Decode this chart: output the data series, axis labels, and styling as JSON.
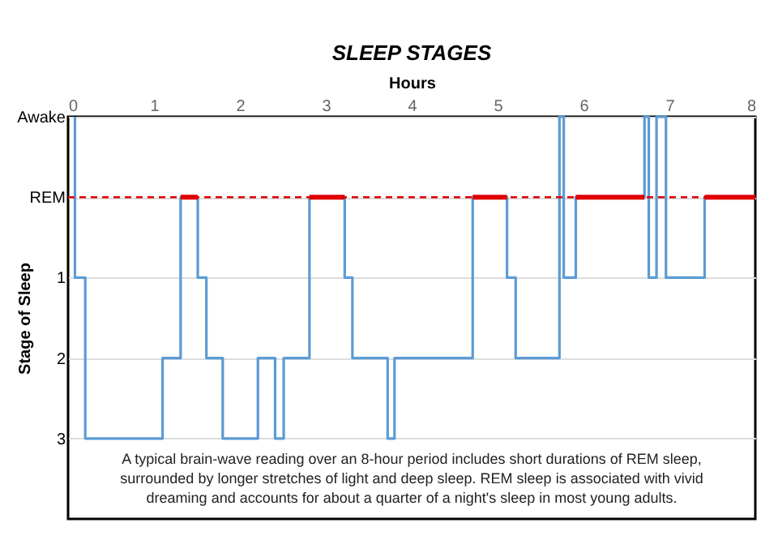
{
  "chart_data": {
    "type": "step",
    "title": "SLEEP STAGES",
    "xlabel": "Hours",
    "ylabel": "Stage of Sleep",
    "xlim": [
      0,
      8
    ],
    "xticks": [
      0,
      1,
      2,
      3,
      4,
      5,
      6,
      7,
      8
    ],
    "ylim": [
      4,
      -1
    ],
    "yticks": [
      {
        "value": -1,
        "label": "Awake"
      },
      {
        "value": 0,
        "label": "REM"
      },
      1,
      2,
      3
    ],
    "grid": "y",
    "legend": false,
    "line_style": "solid",
    "series": [
      {
        "type": "step",
        "color": "#5b9bd5",
        "x": [
          0.08,
          0.08,
          0.2,
          1.1,
          1.31,
          1.51,
          1.61,
          1.8,
          2.21,
          2.41,
          2.51,
          2.81,
          3.22,
          3.31,
          3.72,
          3.8,
          4.71,
          5.11,
          5.21,
          5.72,
          5.77,
          5.91,
          6.71,
          6.76,
          6.85,
          6.96,
          7.41,
          8
        ],
        "values": [
          -1,
          1,
          3,
          2,
          0,
          1,
          2,
          3,
          2,
          3,
          2,
          0,
          1,
          2,
          3,
          2,
          0,
          1,
          2,
          -1,
          1,
          0,
          -1,
          1,
          -1,
          1,
          0,
          0
        ]
      },
      {
        "type": "line",
        "color": "#e00000",
        "x": [
          1.31,
          1.51
        ],
        "values": [
          0,
          0
        ]
      },
      {
        "type": "line",
        "color": "#e00000",
        "x": [
          2.81,
          3.22
        ],
        "values": [
          0,
          0
        ]
      },
      {
        "type": "line",
        "color": "#e00000",
        "x": [
          4.71,
          5.11
        ],
        "values": [
          0,
          0
        ]
      },
      {
        "type": "line",
        "color": "#e00000",
        "x": [
          5.91,
          6.71
        ],
        "values": [
          0,
          0
        ]
      },
      {
        "type": "line",
        "color": "#e00000",
        "x": [
          7.41,
          8
        ],
        "values": [
          0,
          0
        ]
      }
    ],
    "ref_lines": [
      {
        "axis": "y",
        "value": 0,
        "color": "#e00000",
        "line_style": "dashed"
      }
    ],
    "annotations": [
      "A typical brain-wave reading over an 8-hour period includes short durations of REM sleep, surrounded by longer stretches of light and deep sleep. REM sleep is associated with vivid dreaming and accounts for about a quarter of a night's sleep in most young adults."
    ]
  }
}
